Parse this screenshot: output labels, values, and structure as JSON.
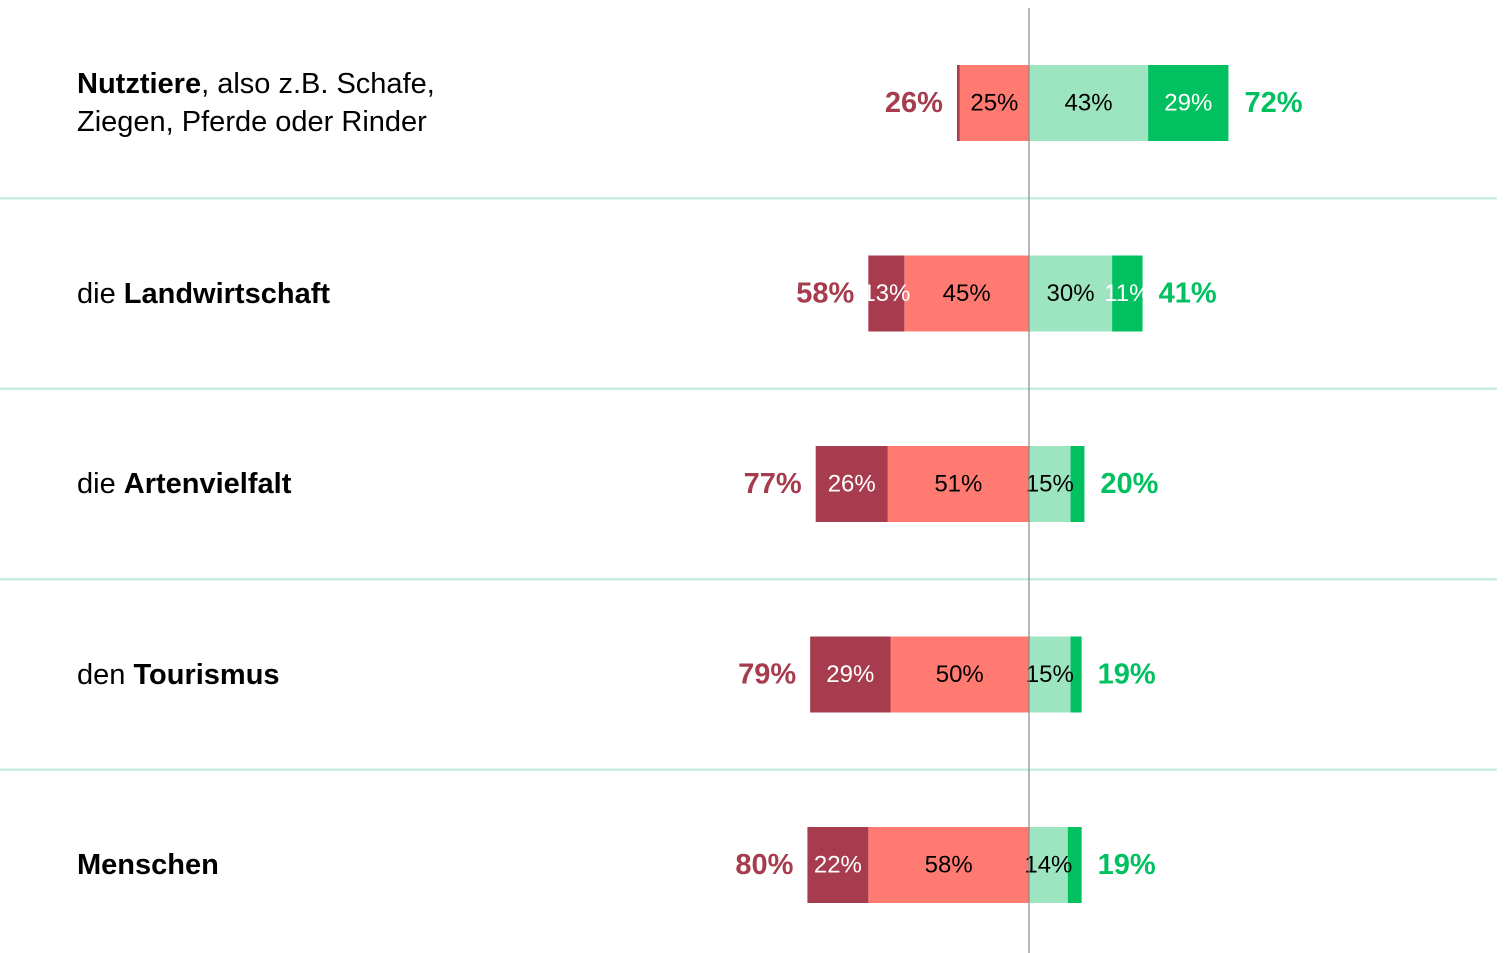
{
  "chart_data": {
    "type": "diverging-bar",
    "categories": [
      [
        {
          "text": "Nutztiere",
          "bold": true
        },
        {
          "text": ", also z.B. Schafe, Ziegen, Pferde oder Rinder",
          "bold": false
        }
      ],
      [
        {
          "text": "die ",
          "bold": false
        },
        {
          "text": "Landwirtschaft",
          "bold": true
        }
      ],
      [
        {
          "text": "die ",
          "bold": false
        },
        {
          "text": "Artenvielfalt",
          "bold": true
        }
      ],
      [
        {
          "text": "den ",
          "bold": false
        },
        {
          "text": "Tourismus",
          "bold": true
        }
      ],
      [
        {
          "text": "Menschen",
          "bold": true
        }
      ]
    ],
    "series": [
      {
        "color": "#a63c4e",
        "label_color": "#ffffff",
        "values": [
          1,
          13,
          26,
          29,
          22
        ],
        "value_labels": [
          null,
          "13%",
          "26%",
          "29%",
          "22%"
        ]
      },
      {
        "color": "#ff7b72",
        "label_color": "#000000",
        "values": [
          25,
          45,
          51,
          50,
          58
        ],
        "value_labels": [
          "25%",
          "45%",
          "51%",
          "50%",
          "58%"
        ]
      },
      {
        "color": "#9de5c0",
        "label_color": "#000000",
        "values": [
          43,
          30,
          15,
          15,
          14
        ],
        "value_labels": [
          "43%",
          "30%",
          "15%",
          "15%",
          "14%"
        ]
      },
      {
        "color": "#00c060",
        "label_color": "#ffffff",
        "values": [
          29,
          11,
          5,
          4,
          5
        ],
        "value_labels": [
          "29%",
          "11%",
          null,
          null,
          null
        ]
      }
    ],
    "negative_totals": {
      "color": "#a63c4e",
      "values": [
        26,
        58,
        77,
        79,
        80
      ],
      "value_labels": [
        "26%",
        "58%",
        "77%",
        "79%",
        "80%"
      ]
    },
    "positive_totals": {
      "color": "#00c060",
      "values": [
        72,
        41,
        20,
        19,
        19
      ],
      "value_labels": [
        "72%",
        "41%",
        "20%",
        "19%",
        "19%"
      ]
    }
  }
}
